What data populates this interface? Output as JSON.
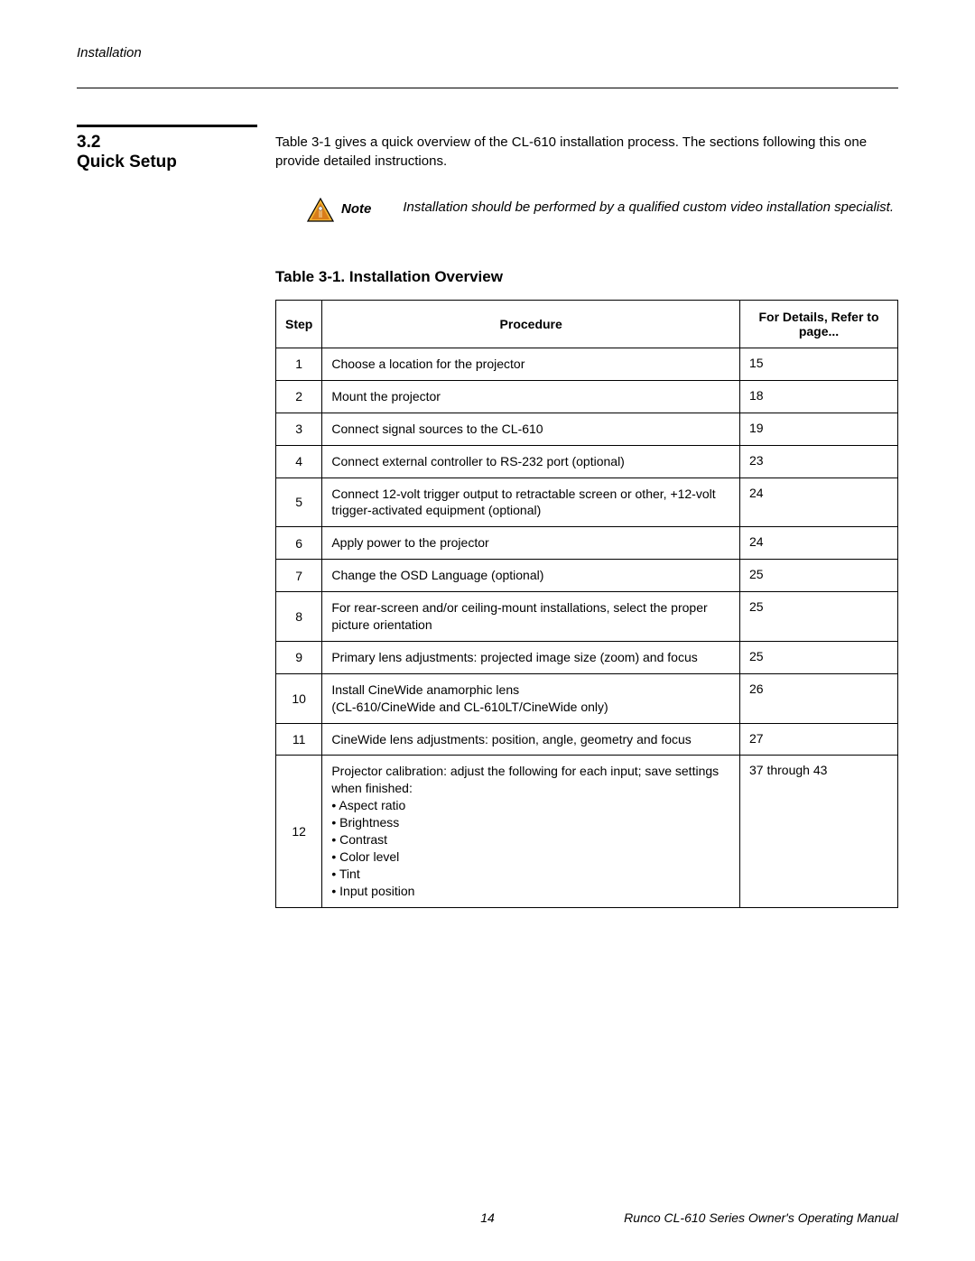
{
  "header": "Installation",
  "section": {
    "number": "3.2",
    "title": "Quick Setup"
  },
  "intro": "Table 3-1 gives a quick overview of the CL-610 installation process. The sections following this one provide detailed instructions.",
  "note": {
    "label": "Note",
    "text": "Installation should be performed by a qualified custom video installation specialist."
  },
  "table": {
    "caption": "Table 3-1. Installation Overview",
    "headers": {
      "step": "Step",
      "procedure": "Procedure",
      "details": "For Details, Refer to page..."
    },
    "rows": [
      {
        "step": "1",
        "procedure": "Choose a location for the projector",
        "page": "15"
      },
      {
        "step": "2",
        "procedure": "Mount the projector",
        "page": "18"
      },
      {
        "step": "3",
        "procedure": "Connect signal sources to the CL-610",
        "page": "19"
      },
      {
        "step": "4",
        "procedure": "Connect external controller to RS-232 port (optional)",
        "page": "23"
      },
      {
        "step": "5",
        "procedure": "Connect 12-volt trigger output to retractable screen or other, +12-volt trigger-activated equipment (optional)",
        "page": "24"
      },
      {
        "step": "6",
        "procedure": "Apply power to the projector",
        "page": "24"
      },
      {
        "step": "7",
        "procedure": "Change the OSD Language (optional)",
        "page": "25"
      },
      {
        "step": "8",
        "procedure": "For rear-screen and/or ceiling-mount installations, select the proper picture orientation",
        "page": "25"
      },
      {
        "step": "9",
        "procedure": "Primary lens adjustments: projected image size (zoom) and focus",
        "page": "25"
      },
      {
        "step": "10",
        "procedure": "Install CineWide anamorphic lens\n(CL-610/CineWide and CL-610LT/CineWide only)",
        "page": "26"
      },
      {
        "step": "11",
        "procedure": "CineWide lens adjustments: position, angle, geometry and focus",
        "page": "27"
      },
      {
        "step": "12",
        "procedure_intro": "Projector calibration: adjust the following for each input; save settings when finished:",
        "bullets": [
          "Aspect ratio",
          "Brightness",
          "Contrast",
          "Color level",
          "Tint",
          "Input position"
        ],
        "page": "37 through 43"
      }
    ]
  },
  "footer": {
    "page": "14",
    "title": "Runco CL-610 Series Owner's Operating Manual"
  },
  "triangle": {
    "stroke": "#000000",
    "fill_top": "#f2b233",
    "fill_bottom": "#d97d1a",
    "inner_fill": "#d97d1a",
    "hand": "#e7ad63"
  }
}
